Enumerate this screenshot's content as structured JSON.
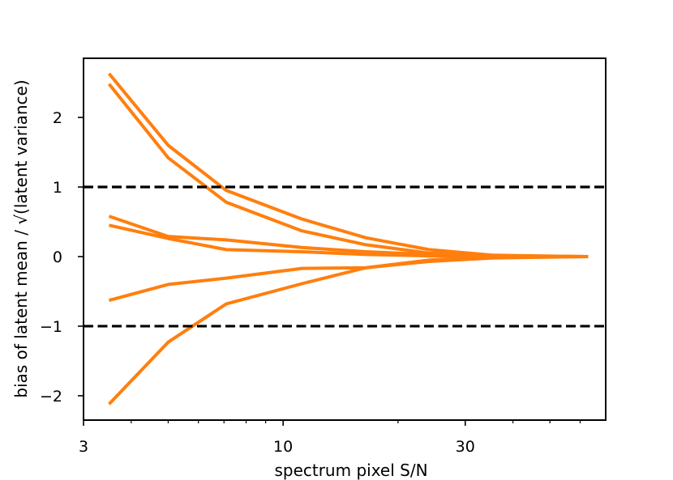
{
  "chart_data": {
    "type": "line",
    "title": "",
    "xlabel": "spectrum pixel S/N",
    "ylabel": "bias of latent mean / √(latent variance)",
    "xscale": "log",
    "xlim": [
      3,
      70
    ],
    "ylim": [
      -2.35,
      2.85
    ],
    "x_ticks": [
      {
        "value": 3,
        "label": "3"
      },
      {
        "value": 10,
        "label": "10"
      },
      {
        "value": 30,
        "label": "30"
      }
    ],
    "x_minor_ticks": [
      4,
      5,
      6,
      7,
      8,
      9,
      20,
      40,
      50,
      60
    ],
    "y_ticks": [
      {
        "value": -2,
        "label": "−2"
      },
      {
        "value": -1,
        "label": "−1"
      },
      {
        "value": 0,
        "label": "0"
      },
      {
        "value": 1,
        "label": "1"
      },
      {
        "value": 2,
        "label": "2"
      }
    ],
    "grid": false,
    "legend": "none",
    "series_color": "#ff7f0e",
    "reference_lines": [
      {
        "y": 1,
        "style": "dashed",
        "color": "#000000"
      },
      {
        "y": -1,
        "style": "dashed",
        "color": "#000000"
      }
    ],
    "x": [
      3.5,
      5.0,
      7.1,
      11.2,
      16.5,
      24.1,
      35.3,
      63.0
    ],
    "series": [
      {
        "values": [
          2.63,
          1.6,
          0.95,
          0.54,
          0.27,
          0.1,
          0.02,
          0.0
        ]
      },
      {
        "values": [
          2.48,
          1.42,
          0.78,
          0.37,
          0.17,
          0.05,
          0.01,
          0.0
        ]
      },
      {
        "values": [
          0.58,
          0.29,
          0.24,
          0.13,
          0.07,
          0.03,
          0.01,
          0.0
        ]
      },
      {
        "values": [
          0.45,
          0.26,
          0.1,
          0.07,
          0.03,
          0.01,
          0.0,
          0.0
        ]
      },
      {
        "values": [
          -0.63,
          -0.4,
          -0.31,
          -0.17,
          -0.16,
          -0.07,
          -0.02,
          0.0
        ]
      },
      {
        "values": [
          -2.12,
          -1.23,
          -0.68,
          -0.39,
          -0.16,
          -0.05,
          -0.01,
          0.0
        ]
      }
    ]
  }
}
